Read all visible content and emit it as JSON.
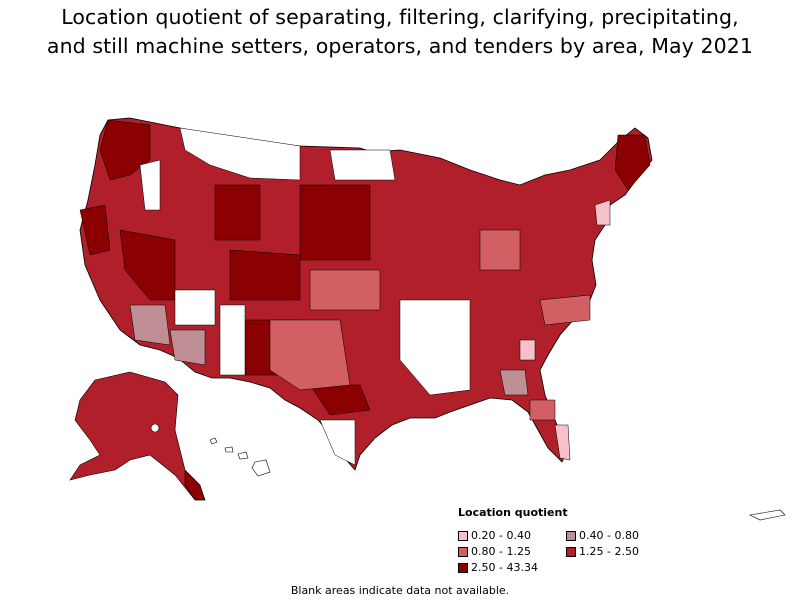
{
  "title_line1": "Location quotient of separating, filtering, clarifying, precipitating,",
  "title_line2": "and still machine setters, operators, and tenders by area, May 2021",
  "legend": {
    "title": "Location quotient",
    "items": [
      {
        "label": "0.20 - 0.40",
        "color": "#f7c1c8"
      },
      {
        "label": "0.40 - 0.80",
        "color": "#bf8f95"
      },
      {
        "label": "0.80 - 1.25",
        "color": "#d25f63"
      },
      {
        "label": "1.25 - 2.50",
        "color": "#b01f2a"
      },
      {
        "label": "2.50 - 43.34",
        "color": "#8b0000"
      }
    ]
  },
  "footnote": "Blank areas indicate data not available.",
  "colors": {
    "blank": "#ffffff",
    "border": "#000000"
  }
}
